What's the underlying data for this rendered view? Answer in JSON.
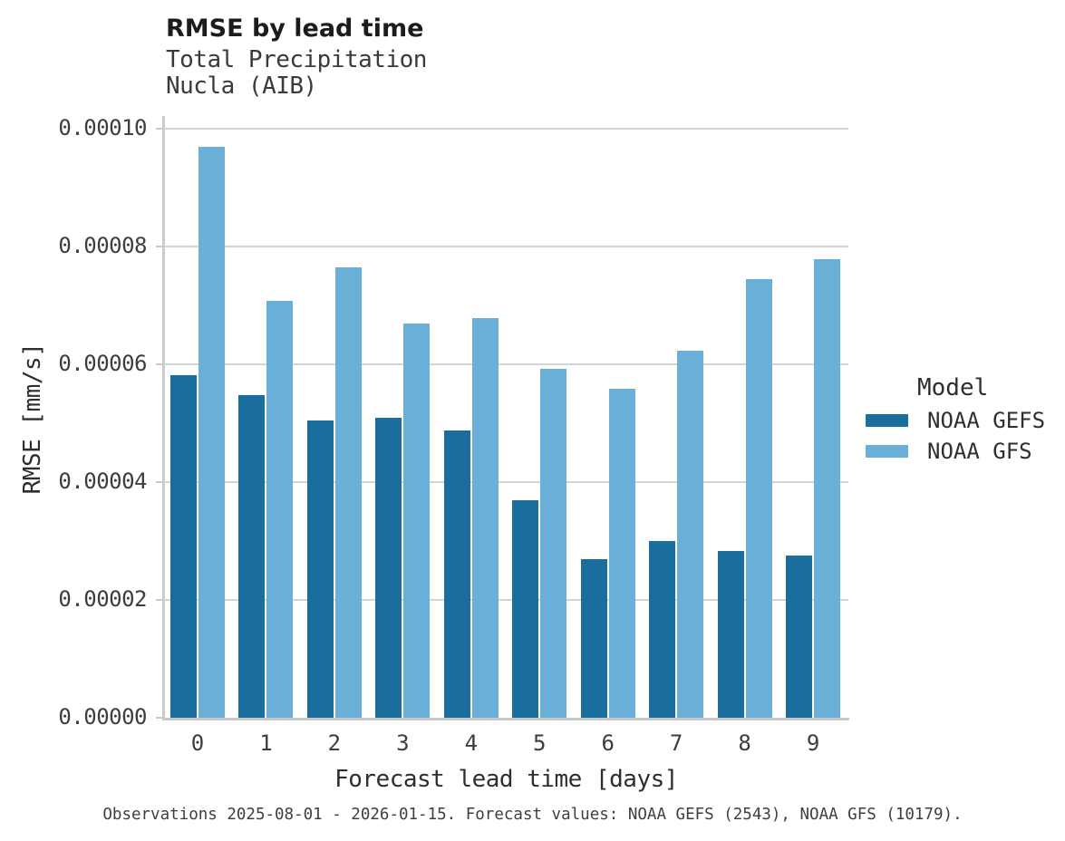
{
  "header": {
    "title": "RMSE by lead time",
    "subtitle": [
      "Total Precipitation",
      "Nucla (AIB)"
    ]
  },
  "chart_data": {
    "type": "bar",
    "title": "RMSE by lead time",
    "subtitle": "Total Precipitation / Nucla (AIB)",
    "xlabel": "Forecast lead time [days]",
    "ylabel": "RMSE [mm/s]",
    "categories": [
      "0",
      "1",
      "2",
      "3",
      "4",
      "5",
      "6",
      "7",
      "8",
      "9"
    ],
    "ylim": [
      0,
      0.0001
    ],
    "yticks": [
      0,
      2e-05,
      4e-05,
      6e-05,
      8e-05,
      0.0001
    ],
    "ytick_labels": [
      "0.00000",
      "0.00002",
      "0.00004",
      "0.00006",
      "0.00008",
      "0.00010"
    ],
    "grid": "horizontal",
    "legend_position": "right",
    "legend_title": "Model",
    "series": [
      {
        "name": "NOAA GEFS",
        "color": "#1a6e9e",
        "values": [
          5.82e-05,
          5.47e-05,
          5.04e-05,
          5.1e-05,
          4.88e-05,
          3.69e-05,
          2.69e-05,
          3e-05,
          2.83e-05,
          2.76e-05
        ]
      },
      {
        "name": "NOAA GFS",
        "color": "#69afd8",
        "values": [
          9.7e-05,
          7.08e-05,
          7.65e-05,
          6.7e-05,
          6.78e-05,
          5.93e-05,
          5.58e-05,
          6.23e-05,
          7.44e-05,
          7.79e-05
        ]
      }
    ]
  },
  "footer": {
    "caption": "Observations 2025-08-01 - 2026-01-15. Forecast values: NOAA GEFS (2543), NOAA GFS (10179)."
  },
  "colors": {
    "gridline": "#d4d4d4",
    "axis_spine": "#c9c9c9",
    "title_text": "#1c1c1c",
    "body_text": "#2e2e2e",
    "tick_text": "#3d3d3d",
    "caption_text": "#3f3f3f",
    "background": "#ffffff"
  }
}
